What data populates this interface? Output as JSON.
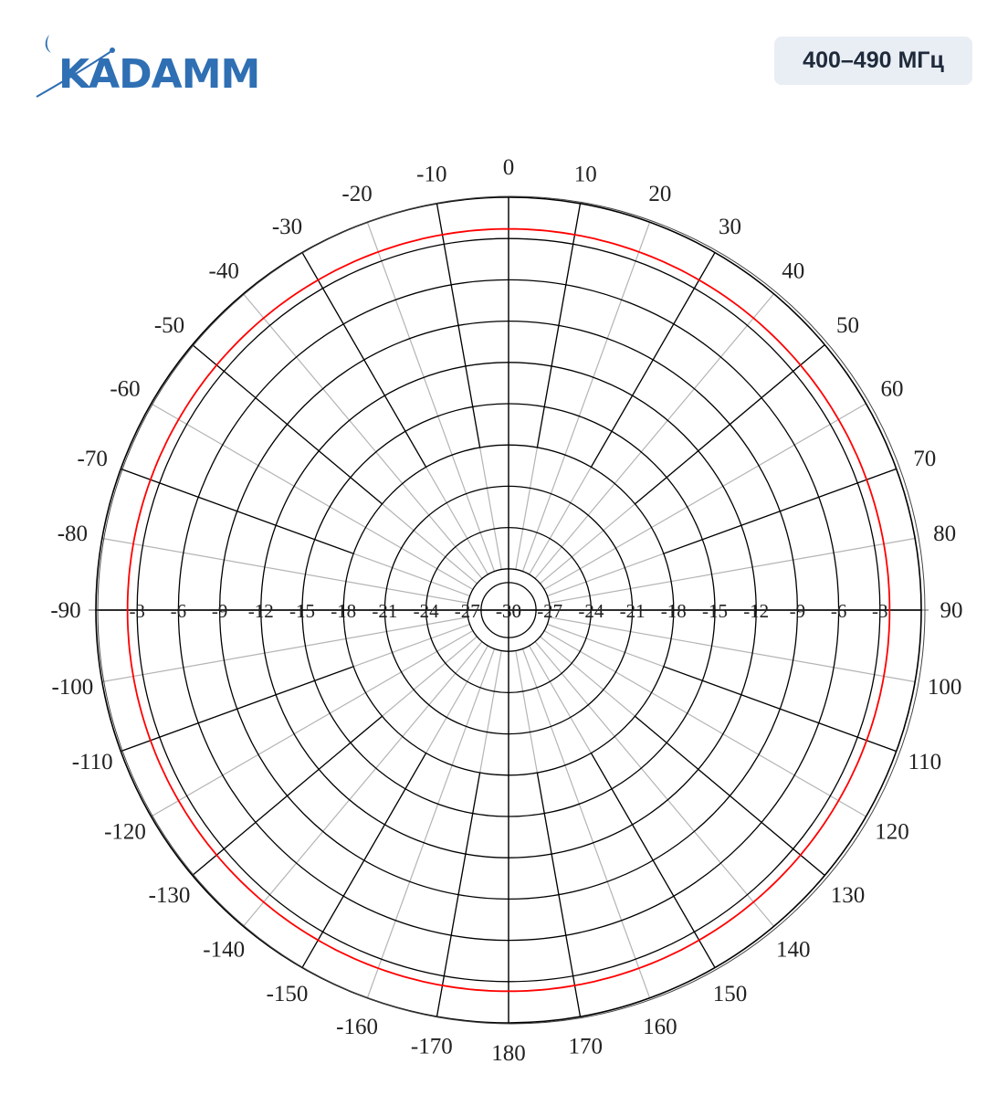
{
  "header": {
    "logo_text": "KADAMM",
    "band_badge": "400–490 МГц"
  },
  "colors": {
    "brand": "#2f6fb3",
    "pattern": "#ff0000",
    "grid_major": "#000000",
    "grid_minor": "#b4b4b4",
    "badge_bg": "#e9eef5"
  },
  "chart_data": {
    "type": "polar",
    "title": "",
    "angle_unit": "degrees",
    "angle_ticks": [
      "0",
      "10",
      "20",
      "30",
      "40",
      "50",
      "60",
      "70",
      "80",
      "90",
      "100",
      "110",
      "120",
      "130",
      "140",
      "150",
      "160",
      "170",
      "180",
      "-170",
      "-160",
      "-150",
      "-140",
      "-130",
      "-120",
      "-110",
      "-100",
      "-90",
      "-80",
      "-70",
      "-60",
      "-50",
      "-40",
      "-30",
      "-20",
      "-10"
    ],
    "radial_ticks": [
      "-3",
      "-6",
      "-9",
      "-12",
      "-15",
      "-18",
      "-21",
      "-24",
      "-27",
      "-30"
    ],
    "radial_range": [
      -30,
      0
    ],
    "grid": true,
    "series": [
      {
        "color": "#ff0000",
        "angles": [
          0,
          30,
          60,
          90,
          120,
          150,
          180,
          210,
          240,
          270,
          300,
          330,
          360
        ],
        "values": [
          -2.3,
          -2.3,
          -2.3,
          -2.3,
          -2.3,
          -2.3,
          -2.3,
          -2.3,
          -2.3,
          -2.3,
          -2.3,
          -2.3,
          -2.3
        ]
      }
    ]
  }
}
